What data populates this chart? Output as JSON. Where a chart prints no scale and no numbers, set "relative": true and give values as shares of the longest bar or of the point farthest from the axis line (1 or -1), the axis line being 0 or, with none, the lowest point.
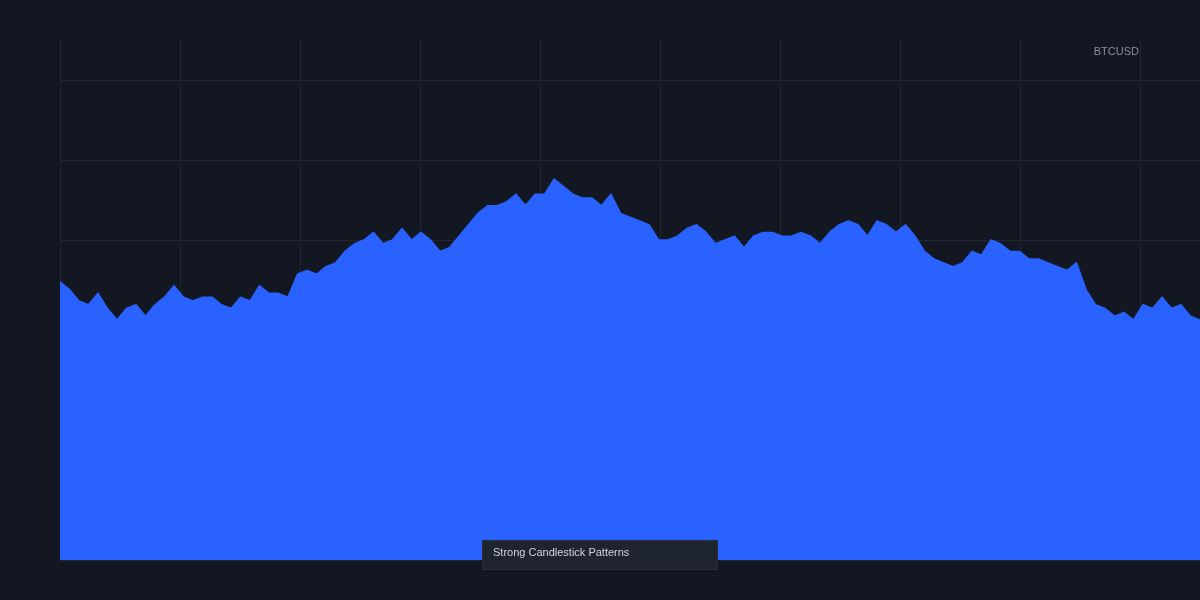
{
  "chart_data": {
    "type": "area",
    "relative": true,
    "grid": true,
    "annotations": [
      "BTCUSD",
      "Strong Candlestick Patterns"
    ],
    "categories": [
      null,
      null,
      null,
      null,
      null,
      null,
      null,
      null,
      null,
      null,
      null,
      null,
      null,
      null,
      null,
      null,
      null,
      null,
      null,
      null,
      null,
      null,
      null,
      null,
      null,
      null,
      null,
      null,
      null,
      null,
      null,
      null,
      null,
      null,
      null,
      null,
      null,
      null,
      null,
      null,
      null,
      null,
      null,
      null,
      null,
      null,
      null,
      null,
      null,
      null,
      null,
      null,
      null,
      null,
      null,
      null,
      null,
      null,
      null,
      null,
      null,
      null,
      null,
      null,
      null,
      null,
      null,
      null,
      null,
      null,
      null,
      null,
      null,
      null,
      null,
      null,
      null,
      null,
      null,
      null,
      null,
      null,
      null,
      null,
      null,
      null,
      null,
      null,
      null,
      null,
      null,
      null,
      null,
      null,
      null,
      null,
      null,
      null,
      null,
      null,
      null,
      null,
      null,
      null,
      null,
      null,
      null,
      null,
      null,
      null,
      null,
      null,
      null,
      null,
      null,
      null,
      null,
      null,
      null,
      null,
      null
    ],
    "series": [
      {
        "color": "#2962ff",
        "values": [
          0.73,
          0.71,
          0.68,
          0.67,
          0.7,
          0.66,
          0.63,
          0.66,
          0.67,
          0.64,
          0.67,
          0.69,
          0.72,
          0.69,
          0.68,
          0.69,
          0.69,
          0.67,
          0.66,
          0.69,
          0.68,
          0.72,
          0.7,
          0.7,
          0.69,
          0.75,
          0.76,
          0.75,
          0.77,
          0.78,
          0.81,
          0.83,
          0.84,
          0.86,
          0.83,
          0.84,
          0.87,
          0.84,
          0.86,
          0.84,
          0.81,
          0.82,
          0.85,
          0.88,
          0.91,
          0.93,
          0.93,
          0.94,
          0.96,
          0.93,
          0.96,
          0.96,
          1,
          0.98,
          0.96,
          0.95,
          0.95,
          0.93,
          0.96,
          0.91,
          0.9,
          0.89,
          0.88,
          0.84,
          0.84,
          0.85,
          0.87,
          0.88,
          0.86,
          0.83,
          0.84,
          0.85,
          0.82,
          0.85,
          0.86,
          0.86,
          0.85,
          0.85,
          0.86,
          0.85,
          0.83,
          0.86,
          0.88,
          0.89,
          0.88,
          0.85,
          0.89,
          0.88,
          0.86,
          0.88,
          0.85,
          0.81,
          0.79,
          0.78,
          0.77,
          0.78,
          0.81,
          0.8,
          0.84,
          0.83,
          0.81,
          0.81,
          0.79,
          0.79,
          0.78,
          0.77,
          0.76,
          0.78,
          0.71,
          0.67,
          0.66,
          0.64,
          0.65,
          0.63,
          0.67,
          0.66,
          0.69,
          0.66,
          0.67,
          0.64,
          0.63
        ]
      }
    ]
  }
}
